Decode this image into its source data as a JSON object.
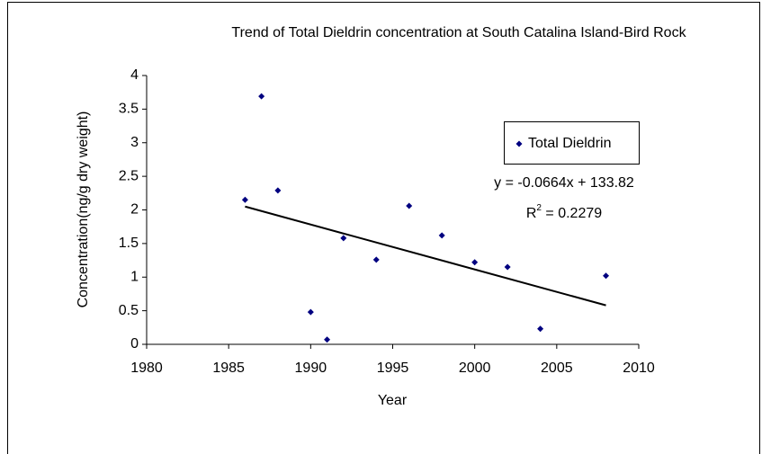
{
  "chart_data": {
    "type": "scatter",
    "title": "Trend of Total Dieldrin concentration at South Catalina Island-Bird Rock",
    "xlabel": "Year",
    "ylabel": "Concentration(ng/g dry weight)",
    "series": [
      {
        "name": "Total Dieldrin",
        "color": "#000080",
        "x": [
          1986,
          1987,
          1988,
          1990,
          1991,
          1992,
          1994,
          1996,
          1998,
          2000,
          2002,
          2004,
          2008
        ],
        "values": [
          2.15,
          3.69,
          2.29,
          0.48,
          0.07,
          1.58,
          1.26,
          2.06,
          1.62,
          1.22,
          1.15,
          0.23,
          1.02
        ]
      }
    ],
    "trendline": {
      "x": [
        1986,
        2008
      ],
      "values": [
        2.05,
        0.58
      ],
      "color": "#000000",
      "equation": "y = -0.0664x + 133.82",
      "r_squared": {
        "prefix": "R",
        "sup": "2",
        "rest": " = 0.2279"
      }
    },
    "xlim": [
      1980,
      2010
    ],
    "xticks": [
      1980,
      1985,
      1990,
      1995,
      2000,
      2005,
      2010
    ],
    "ylim": [
      0,
      4
    ],
    "yticks": [
      0,
      0.5,
      1,
      1.5,
      2,
      2.5,
      3,
      3.5,
      4
    ],
    "grid": false,
    "legend": "upper right"
  }
}
